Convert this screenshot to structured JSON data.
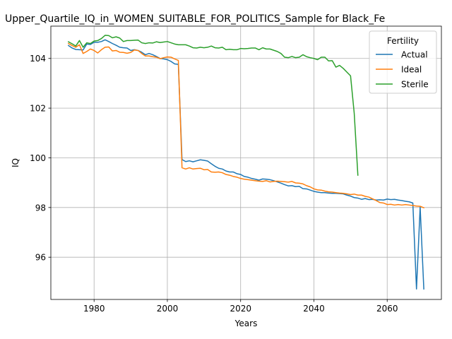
{
  "chart_data": {
    "type": "line",
    "title": "Upper_Quartile_IQ_in_WOMEN_SUITABLE_FOR_POLITICS_Sample for Black_Fe",
    "xlabel": "Years",
    "ylabel": "IQ",
    "xlim": [
      1968.2,
      2074.8
    ],
    "ylim": [
      94.3,
      105.3
    ],
    "xticks": [
      1980,
      2000,
      2020,
      2040,
      2060
    ],
    "yticks": [
      96,
      98,
      100,
      102,
      104
    ],
    "grid": true,
    "legend": {
      "title": "Fertility",
      "placement": "top-right"
    },
    "series": [
      {
        "name": "Actual",
        "color": "#1f77b4",
        "points": [
          [
            1973,
            104.52
          ],
          [
            1974,
            104.42
          ],
          [
            1975,
            104.36
          ],
          [
            1976,
            104.35
          ],
          [
            1977,
            104.34
          ],
          [
            1978,
            104.58
          ],
          [
            1979,
            104.56
          ],
          [
            1980,
            104.65
          ],
          [
            1981,
            104.65
          ],
          [
            1982,
            104.68
          ],
          [
            1983,
            104.75
          ],
          [
            1984,
            104.68
          ],
          [
            1985,
            104.6
          ],
          [
            1986,
            104.53
          ],
          [
            1987,
            104.45
          ],
          [
            1988,
            104.43
          ],
          [
            1989,
            104.42
          ],
          [
            1990,
            104.32
          ],
          [
            1991,
            104.35
          ],
          [
            1992,
            104.32
          ],
          [
            1993,
            104.25
          ],
          [
            1994,
            104.15
          ],
          [
            1995,
            104.2
          ],
          [
            1996,
            104.15
          ],
          [
            1997,
            104.08
          ],
          [
            1998,
            104.0
          ],
          [
            1999,
            103.98
          ],
          [
            2000,
            103.95
          ],
          [
            2001,
            103.88
          ],
          [
            2002,
            103.78
          ],
          [
            2003,
            103.76
          ],
          [
            2004,
            99.93
          ],
          [
            2005,
            99.85
          ],
          [
            2006,
            99.88
          ],
          [
            2007,
            99.84
          ],
          [
            2008,
            99.88
          ],
          [
            2009,
            99.92
          ],
          [
            2010,
            99.9
          ],
          [
            2011,
            99.87
          ],
          [
            2012,
            99.76
          ],
          [
            2013,
            99.66
          ],
          [
            2014,
            99.58
          ],
          [
            2015,
            99.55
          ],
          [
            2016,
            99.47
          ],
          [
            2017,
            99.43
          ],
          [
            2018,
            99.43
          ],
          [
            2019,
            99.36
          ],
          [
            2020,
            99.33
          ],
          [
            2021,
            99.25
          ],
          [
            2022,
            99.22
          ],
          [
            2023,
            99.17
          ],
          [
            2024,
            99.14
          ],
          [
            2025,
            99.1
          ],
          [
            2026,
            99.15
          ],
          [
            2027,
            99.14
          ],
          [
            2028,
            99.12
          ],
          [
            2029,
            99.08
          ],
          [
            2030,
            99.03
          ],
          [
            2031,
            98.98
          ],
          [
            2032,
            98.92
          ],
          [
            2033,
            98.87
          ],
          [
            2034,
            98.88
          ],
          [
            2035,
            98.84
          ],
          [
            2036,
            98.85
          ],
          [
            2037,
            98.76
          ],
          [
            2038,
            98.75
          ],
          [
            2039,
            98.7
          ],
          [
            2040,
            98.65
          ],
          [
            2041,
            98.62
          ],
          [
            2042,
            98.6
          ],
          [
            2043,
            98.6
          ],
          [
            2044,
            98.58
          ],
          [
            2045,
            98.57
          ],
          [
            2046,
            98.57
          ],
          [
            2047,
            98.56
          ],
          [
            2048,
            98.55
          ],
          [
            2049,
            98.5
          ],
          [
            2050,
            98.46
          ],
          [
            2051,
            98.4
          ],
          [
            2052,
            98.38
          ],
          [
            2053,
            98.33
          ],
          [
            2054,
            98.36
          ],
          [
            2055,
            98.32
          ],
          [
            2056,
            98.33
          ],
          [
            2057,
            98.3
          ],
          [
            2058,
            98.31
          ],
          [
            2059,
            98.3
          ],
          [
            2060,
            98.34
          ],
          [
            2061,
            98.32
          ],
          [
            2062,
            98.33
          ],
          [
            2063,
            98.3
          ],
          [
            2064,
            98.28
          ],
          [
            2065,
            98.25
          ],
          [
            2066,
            98.23
          ],
          [
            2067,
            98.18
          ],
          [
            2068,
            94.72
          ],
          [
            2069,
            98.02
          ],
          [
            2070,
            94.72
          ]
        ]
      },
      {
        "name": "Ideal",
        "color": "#ff7f0e",
        "points": [
          [
            1973,
            104.6
          ],
          [
            1974,
            104.52
          ],
          [
            1975,
            104.45
          ],
          [
            1976,
            104.55
          ],
          [
            1977,
            104.2
          ],
          [
            1978,
            104.28
          ],
          [
            1979,
            104.38
          ],
          [
            1980,
            104.32
          ],
          [
            1981,
            104.22
          ],
          [
            1982,
            104.35
          ],
          [
            1983,
            104.45
          ],
          [
            1984,
            104.46
          ],
          [
            1985,
            104.3
          ],
          [
            1986,
            104.32
          ],
          [
            1987,
            104.25
          ],
          [
            1988,
            104.24
          ],
          [
            1989,
            104.21
          ],
          [
            1990,
            104.24
          ],
          [
            1991,
            104.34
          ],
          [
            1992,
            104.32
          ],
          [
            1993,
            104.2
          ],
          [
            1994,
            104.1
          ],
          [
            1995,
            104.1
          ],
          [
            1996,
            104.07
          ],
          [
            1997,
            104.05
          ],
          [
            1998,
            103.99
          ],
          [
            1999,
            104.03
          ],
          [
            2000,
            104.06
          ],
          [
            2001,
            104.05
          ],
          [
            2002,
            103.98
          ],
          [
            2003,
            103.92
          ],
          [
            2004,
            99.6
          ],
          [
            2005,
            99.55
          ],
          [
            2006,
            99.6
          ],
          [
            2007,
            99.55
          ],
          [
            2008,
            99.57
          ],
          [
            2009,
            99.58
          ],
          [
            2010,
            99.52
          ],
          [
            2011,
            99.53
          ],
          [
            2012,
            99.43
          ],
          [
            2013,
            99.42
          ],
          [
            2014,
            99.43
          ],
          [
            2015,
            99.4
          ],
          [
            2016,
            99.33
          ],
          [
            2017,
            99.3
          ],
          [
            2018,
            99.25
          ],
          [
            2019,
            99.22
          ],
          [
            2020,
            99.17
          ],
          [
            2021,
            99.14
          ],
          [
            2022,
            99.12
          ],
          [
            2023,
            99.1
          ],
          [
            2024,
            99.08
          ],
          [
            2025,
            99.06
          ],
          [
            2026,
            99.05
          ],
          [
            2027,
            99.08
          ],
          [
            2028,
            99.03
          ],
          [
            2029,
            99.05
          ],
          [
            2030,
            99.06
          ],
          [
            2031,
            99.05
          ],
          [
            2032,
            99.04
          ],
          [
            2033,
            99.02
          ],
          [
            2034,
            99.05
          ],
          [
            2035,
            98.99
          ],
          [
            2036,
            98.98
          ],
          [
            2037,
            98.95
          ],
          [
            2038,
            98.88
          ],
          [
            2039,
            98.83
          ],
          [
            2040,
            98.75
          ],
          [
            2041,
            98.71
          ],
          [
            2042,
            98.7
          ],
          [
            2043,
            98.66
          ],
          [
            2044,
            98.63
          ],
          [
            2045,
            98.62
          ],
          [
            2046,
            98.6
          ],
          [
            2047,
            98.58
          ],
          [
            2048,
            98.57
          ],
          [
            2049,
            98.55
          ],
          [
            2050,
            98.52
          ],
          [
            2051,
            98.54
          ],
          [
            2052,
            98.5
          ],
          [
            2053,
            98.5
          ],
          [
            2054,
            98.45
          ],
          [
            2055,
            98.42
          ],
          [
            2056,
            98.35
          ],
          [
            2057,
            98.28
          ],
          [
            2058,
            98.2
          ],
          [
            2059,
            98.18
          ],
          [
            2060,
            98.12
          ],
          [
            2061,
            98.13
          ],
          [
            2062,
            98.1
          ],
          [
            2063,
            98.12
          ],
          [
            2064,
            98.1
          ],
          [
            2065,
            98.12
          ],
          [
            2066,
            98.1
          ],
          [
            2067,
            98.08
          ],
          [
            2068,
            98.06
          ],
          [
            2069,
            98.05
          ],
          [
            2070,
            97.99
          ]
        ]
      },
      {
        "name": "Sterile",
        "color": "#2ca02c",
        "points": [
          [
            1973,
            104.67
          ],
          [
            1974,
            104.59
          ],
          [
            1975,
            104.5
          ],
          [
            1976,
            104.72
          ],
          [
            1977,
            104.45
          ],
          [
            1978,
            104.63
          ],
          [
            1979,
            104.6
          ],
          [
            1980,
            104.7
          ],
          [
            1981,
            104.72
          ],
          [
            1982,
            104.8
          ],
          [
            1983,
            104.93
          ],
          [
            1984,
            104.92
          ],
          [
            1985,
            104.83
          ],
          [
            1986,
            104.87
          ],
          [
            1987,
            104.82
          ],
          [
            1988,
            104.68
          ],
          [
            1989,
            104.72
          ],
          [
            1990,
            104.72
          ],
          [
            1991,
            104.73
          ],
          [
            1992,
            104.74
          ],
          [
            1993,
            104.63
          ],
          [
            1994,
            104.6
          ],
          [
            1995,
            104.63
          ],
          [
            1996,
            104.62
          ],
          [
            1997,
            104.67
          ],
          [
            1998,
            104.64
          ],
          [
            1999,
            104.66
          ],
          [
            2000,
            104.68
          ],
          [
            2001,
            104.63
          ],
          [
            2002,
            104.58
          ],
          [
            2003,
            104.55
          ],
          [
            2004,
            104.55
          ],
          [
            2005,
            104.55
          ],
          [
            2006,
            104.5
          ],
          [
            2007,
            104.43
          ],
          [
            2008,
            104.42
          ],
          [
            2009,
            104.45
          ],
          [
            2010,
            104.43
          ],
          [
            2011,
            104.45
          ],
          [
            2012,
            104.5
          ],
          [
            2013,
            104.43
          ],
          [
            2014,
            104.42
          ],
          [
            2015,
            104.45
          ],
          [
            2016,
            104.35
          ],
          [
            2017,
            104.37
          ],
          [
            2018,
            104.35
          ],
          [
            2019,
            104.35
          ],
          [
            2020,
            104.4
          ],
          [
            2021,
            104.39
          ],
          [
            2022,
            104.4
          ],
          [
            2023,
            104.42
          ],
          [
            2024,
            104.42
          ],
          [
            2025,
            104.35
          ],
          [
            2026,
            104.43
          ],
          [
            2027,
            104.38
          ],
          [
            2028,
            104.38
          ],
          [
            2029,
            104.33
          ],
          [
            2030,
            104.28
          ],
          [
            2031,
            104.2
          ],
          [
            2032,
            104.05
          ],
          [
            2033,
            104.03
          ],
          [
            2034,
            104.08
          ],
          [
            2035,
            104.03
          ],
          [
            2036,
            104.05
          ],
          [
            2037,
            104.15
          ],
          [
            2038,
            104.07
          ],
          [
            2039,
            104.03
          ],
          [
            2040,
            104.0
          ],
          [
            2041,
            103.95
          ],
          [
            2042,
            104.05
          ],
          [
            2043,
            104.05
          ],
          [
            2044,
            103.9
          ],
          [
            2045,
            103.91
          ],
          [
            2046,
            103.65
          ],
          [
            2047,
            103.72
          ],
          [
            2048,
            103.6
          ],
          [
            2049,
            103.45
          ],
          [
            2050,
            103.3
          ],
          [
            2051,
            101.8
          ],
          [
            2052,
            99.3
          ]
        ]
      }
    ]
  }
}
